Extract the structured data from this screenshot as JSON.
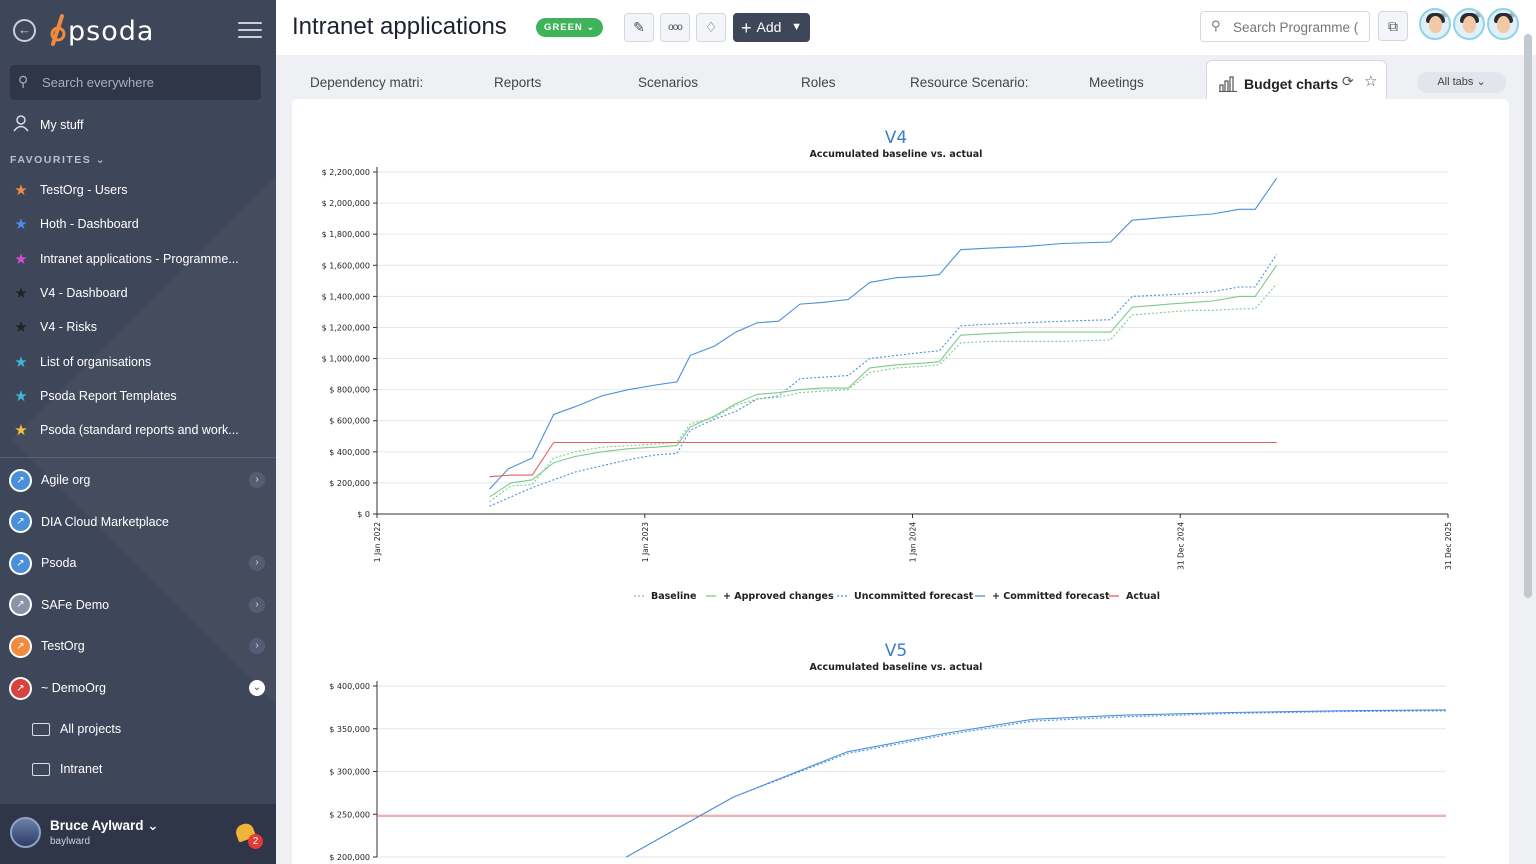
{
  "sidebar": {
    "logo": "psoda",
    "search_placeholder": "Search everywhere",
    "my_stuff": "My stuff",
    "favourites_label": "FAVOURITES",
    "favourites": [
      {
        "label": "TestOrg - Users",
        "color": "#f08a3c"
      },
      {
        "label": "Hoth - Dashboard",
        "color": "#4a90e2"
      },
      {
        "label": "Intranet applications - Programme...",
        "color": "#d94bd0"
      },
      {
        "label": "V4 - Dashboard",
        "color": "#222222"
      },
      {
        "label": "V4 - Risks",
        "color": "#222222"
      },
      {
        "label": "List of organisations",
        "color": "#3bb8d8"
      },
      {
        "label": "Psoda Report Templates",
        "color": "#3bb8d8"
      },
      {
        "label": "Psoda (standard reports and work...",
        "color": "#f3c23c"
      }
    ],
    "orgs": [
      {
        "label": "Agile org",
        "has_children": true
      },
      {
        "label": "DIA Cloud Marketplace",
        "has_children": false
      },
      {
        "label": "Psoda",
        "has_children": true
      },
      {
        "label": "SAFe Demo",
        "has_children": true
      },
      {
        "label": "TestOrg",
        "has_children": true
      },
      {
        "label": "~ DemoOrg",
        "has_children": true,
        "expanded": true
      }
    ],
    "sub_items": [
      "All projects",
      "Intranet"
    ],
    "user": {
      "name": "Bruce Aylward",
      "login": "baylward",
      "notifications": "2"
    }
  },
  "header": {
    "title": "Intranet applications",
    "status": "GREEN",
    "add_label": "Add",
    "search_placeholder": "Search Programme (",
    "accent": "#3e4659",
    "status_color": "#3fb35a"
  },
  "tabs": {
    "items": [
      "Dependency matri:",
      "Reports",
      "Scenarios",
      "Roles",
      "Resource Scenario:",
      "Meetings"
    ],
    "active": "Budget charts",
    "all_tabs": "All tabs"
  },
  "charts": [
    {
      "title": "V4",
      "subtitle": "Accumulated baseline vs. actual",
      "y_ticks": [
        "$ 0",
        "$ 200,000",
        "$ 400,000",
        "$ 600,000",
        "$ 800,000",
        "$ 1,000,000",
        "$ 1,200,000",
        "$ 1,400,000",
        "$ 1,600,000",
        "$ 1,800,000",
        "$ 2,000,000",
        "$ 2,200,000"
      ],
      "x_ticks": [
        "1 Jan 2022",
        "1 Jan 2023",
        "1 Jan 2024",
        "31 Dec 2024",
        "31 Dec 2025"
      ],
      "legend": [
        {
          "label": "Baseline",
          "color": "#7fc98b",
          "dash": true
        },
        {
          "label": "+ Approved changes",
          "color": "#7fc98b",
          "dash": false
        },
        {
          "label": "Uncommitted forecast",
          "color": "#4a90d9",
          "dash": true
        },
        {
          "label": "+ Committed forecast",
          "color": "#4a90d9",
          "dash": false
        },
        {
          "label": "Actual",
          "color": "#e06060",
          "dash": false
        }
      ]
    },
    {
      "title": "V5",
      "subtitle": "Accumulated baseline vs. actual",
      "y_ticks": [
        "$ 200,000",
        "$ 250,000",
        "$ 300,000",
        "$ 350,000",
        "$ 400,000"
      ]
    }
  ],
  "chart_data": [
    {
      "type": "line",
      "title": "V4",
      "subtitle": "Accumulated baseline vs. actual",
      "x_unit": "years since 1 Jan 2022",
      "ylim": [
        0,
        2200000
      ],
      "series": [
        {
          "name": "+ Committed forecast",
          "points": [
            [
              0.42,
              160000
            ],
            [
              0.49,
              290000
            ],
            [
              0.58,
              360000
            ],
            [
              0.66,
              640000
            ],
            [
              0.74,
              690000
            ],
            [
              0.84,
              760000
            ],
            [
              0.94,
              800000
            ],
            [
              1.04,
              830000
            ],
            [
              1.12,
              850000
            ],
            [
              1.17,
              1020000
            ],
            [
              1.26,
              1080000
            ],
            [
              1.34,
              1170000
            ],
            [
              1.42,
              1230000
            ],
            [
              1.5,
              1240000
            ],
            [
              1.58,
              1350000
            ],
            [
              1.66,
              1360000
            ],
            [
              1.76,
              1380000
            ],
            [
              1.84,
              1490000
            ],
            [
              1.94,
              1520000
            ],
            [
              2.04,
              1530000
            ],
            [
              2.1,
              1540000
            ],
            [
              2.18,
              1700000
            ],
            [
              2.28,
              1710000
            ],
            [
              2.42,
              1720000
            ],
            [
              2.56,
              1740000
            ],
            [
              2.74,
              1750000
            ],
            [
              2.82,
              1890000
            ],
            [
              2.96,
              1910000
            ],
            [
              3.04,
              1920000
            ],
            [
              3.12,
              1930000
            ],
            [
              3.22,
              1960000
            ],
            [
              3.28,
              1960000
            ],
            [
              3.36,
              2160000
            ]
          ]
        },
        {
          "name": "Uncommitted forecast",
          "points": [
            [
              0.42,
              50000
            ],
            [
              0.5,
              110000
            ],
            [
              0.58,
              170000
            ],
            [
              0.66,
              220000
            ],
            [
              0.74,
              270000
            ],
            [
              0.84,
              310000
            ],
            [
              0.94,
              350000
            ],
            [
              1.04,
              380000
            ],
            [
              1.12,
              390000
            ],
            [
              1.17,
              540000
            ],
            [
              1.26,
              610000
            ],
            [
              1.34,
              660000
            ],
            [
              1.42,
              740000
            ],
            [
              1.5,
              760000
            ],
            [
              1.58,
              870000
            ],
            [
              1.66,
              880000
            ],
            [
              1.76,
              890000
            ],
            [
              1.84,
              1000000
            ],
            [
              1.94,
              1020000
            ],
            [
              2.04,
              1040000
            ],
            [
              2.1,
              1050000
            ],
            [
              2.18,
              1210000
            ],
            [
              2.28,
              1220000
            ],
            [
              2.42,
              1230000
            ],
            [
              2.56,
              1240000
            ],
            [
              2.74,
              1250000
            ],
            [
              2.82,
              1400000
            ],
            [
              2.96,
              1410000
            ],
            [
              3.04,
              1420000
            ],
            [
              3.12,
              1430000
            ],
            [
              3.22,
              1460000
            ],
            [
              3.28,
              1460000
            ],
            [
              3.36,
              1670000
            ]
          ]
        },
        {
          "name": "Baseline",
          "points": [
            [
              0.42,
              80000
            ],
            [
              0.5,
              180000
            ],
            [
              0.58,
              190000
            ],
            [
              0.66,
              360000
            ],
            [
              0.74,
              400000
            ],
            [
              0.84,
              430000
            ],
            [
              0.94,
              440000
            ],
            [
              1.04,
              450000
            ],
            [
              1.12,
              460000
            ],
            [
              1.17,
              580000
            ],
            [
              1.26,
              620000
            ],
            [
              1.34,
              700000
            ],
            [
              1.42,
              740000
            ],
            [
              1.5,
              750000
            ],
            [
              1.58,
              780000
            ],
            [
              1.66,
              790000
            ],
            [
              1.76,
              800000
            ],
            [
              1.84,
              910000
            ],
            [
              1.94,
              940000
            ],
            [
              2.04,
              950000
            ],
            [
              2.1,
              960000
            ],
            [
              2.18,
              1100000
            ],
            [
              2.28,
              1110000
            ],
            [
              2.42,
              1110000
            ],
            [
              2.56,
              1110000
            ],
            [
              2.74,
              1120000
            ],
            [
              2.82,
              1280000
            ],
            [
              2.96,
              1300000
            ],
            [
              3.04,
              1310000
            ],
            [
              3.12,
              1310000
            ],
            [
              3.22,
              1320000
            ],
            [
              3.28,
              1320000
            ],
            [
              3.36,
              1480000
            ]
          ]
        },
        {
          "name": "+ Approved changes",
          "points": [
            [
              0.42,
              110000
            ],
            [
              0.5,
              200000
            ],
            [
              0.58,
              220000
            ],
            [
              0.66,
              330000
            ],
            [
              0.74,
              370000
            ],
            [
              0.84,
              400000
            ],
            [
              0.94,
              420000
            ],
            [
              1.04,
              430000
            ],
            [
              1.12,
              440000
            ],
            [
              1.17,
              560000
            ],
            [
              1.26,
              630000
            ],
            [
              1.34,
              710000
            ],
            [
              1.42,
              770000
            ],
            [
              1.5,
              780000
            ],
            [
              1.58,
              800000
            ],
            [
              1.66,
              810000
            ],
            [
              1.76,
              810000
            ],
            [
              1.84,
              940000
            ],
            [
              1.94,
              960000
            ],
            [
              2.04,
              970000
            ],
            [
              2.1,
              980000
            ],
            [
              2.18,
              1150000
            ],
            [
              2.28,
              1160000
            ],
            [
              2.42,
              1170000
            ],
            [
              2.56,
              1170000
            ],
            [
              2.74,
              1170000
            ],
            [
              2.82,
              1330000
            ],
            [
              2.96,
              1350000
            ],
            [
              3.04,
              1360000
            ],
            [
              3.12,
              1370000
            ],
            [
              3.22,
              1400000
            ],
            [
              3.28,
              1400000
            ],
            [
              3.36,
              1600000
            ]
          ]
        },
        {
          "name": "Actual",
          "points": [
            [
              0.42,
              240000
            ],
            [
              0.5,
              250000
            ],
            [
              0.58,
              250000
            ],
            [
              0.66,
              460000
            ],
            [
              1.0,
              460000
            ],
            [
              3.36,
              460000
            ]
          ]
        }
      ],
      "x_range": [
        0,
        4
      ]
    },
    {
      "type": "line",
      "title": "V5",
      "subtitle": "Accumulated baseline vs. actual",
      "x_unit": "relative",
      "ylim": [
        200000,
        400000
      ],
      "series": [
        {
          "name": "+ Committed forecast",
          "points": [
            [
              0.35,
              200000
            ],
            [
              0.5,
              270000
            ],
            [
              0.5,
              270000
            ],
            [
              0.66,
              323000
            ],
            [
              0.8,
              345000
            ],
            [
              0.92,
              361000
            ],
            [
              1.05,
              366000
            ],
            [
              1.2,
              369000
            ],
            [
              1.35,
              371000
            ],
            [
              1.5,
              372000
            ]
          ]
        },
        {
          "name": "Uncommitted forecast",
          "points": [
            [
              0.35,
              200000
            ],
            [
              0.5,
              270000
            ],
            [
              0.66,
              321000
            ],
            [
              0.8,
              343000
            ],
            [
              0.92,
              359000
            ],
            [
              1.05,
              364000
            ],
            [
              1.2,
              368000
            ],
            [
              1.35,
              370000
            ],
            [
              1.5,
              371000
            ]
          ]
        },
        {
          "name": "Actual",
          "points": [
            [
              0.0,
              248000
            ],
            [
              1.5,
              248000
            ]
          ]
        }
      ],
      "x_range": [
        0,
        1.5
      ]
    }
  ]
}
